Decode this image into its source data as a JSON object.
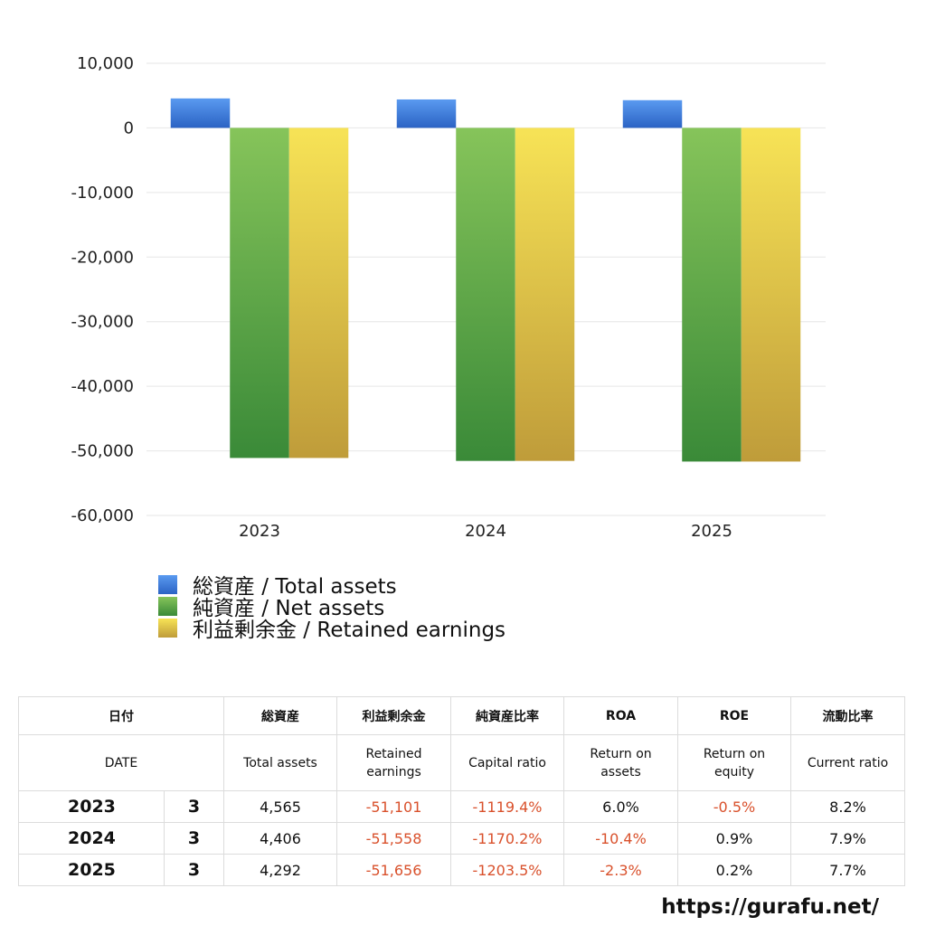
{
  "chart_data": {
    "type": "bar",
    "categories": [
      "2023",
      "2024",
      "2025"
    ],
    "series": [
      {
        "name": "総資産 / Total assets",
        "values": [
          4565,
          4406,
          4292
        ],
        "color": "#3d7bd8"
      },
      {
        "name": "純資産 / Net assets",
        "values": [
          -51101,
          -51558,
          -51656
        ],
        "color": "#4f9f45"
      },
      {
        "name": "利益剰余金 / Retained earnings",
        "values": [
          -51101,
          -51558,
          -51656
        ],
        "color": "#e6c945"
      }
    ],
    "ylim": [
      -60000,
      10000
    ],
    "yticks": [
      10000,
      0,
      -10000,
      -20000,
      -30000,
      -40000,
      -50000,
      -60000
    ],
    "ytick_labels": [
      "10,000",
      "0",
      "-10,000",
      "-20,000",
      "-30,000",
      "-40,000",
      "-50,000",
      "-60,000"
    ],
    "grid": true,
    "legend_position": "bottom-left",
    "title": "",
    "xlabel": "",
    "ylabel": ""
  },
  "legend": [
    {
      "label": "総資産 / Total assets",
      "color_top": "#5a9af0",
      "color_bottom": "#2b63c4"
    },
    {
      "label": "純資産 / Net assets",
      "color_top": "#86c45a",
      "color_bottom": "#3a8a38"
    },
    {
      "label": "利益剰余金 / Retained earnings",
      "color_top": "#f7e356",
      "color_bottom": "#bf9c3a"
    }
  ],
  "table": {
    "headers_jp": [
      "日付",
      "総資産",
      "利益剰余金",
      "純資産比率",
      "ROA",
      "ROE",
      "流動比率"
    ],
    "headers_en": [
      "DATE",
      "Total assets",
      "Retained\nearnings",
      "Capital ratio",
      "Return on\nassets",
      "Return on\nequity",
      "Current ratio"
    ],
    "rows": [
      {
        "year": "2023",
        "month": "3",
        "total_assets": "4,565",
        "retained_earnings": "-51,101",
        "capital_ratio": "-1119.4%",
        "roa": "6.0%",
        "roe": "-0.5%",
        "current_ratio": "8.2%"
      },
      {
        "year": "2024",
        "month": "3",
        "total_assets": "4,406",
        "retained_earnings": "-51,558",
        "capital_ratio": "-1170.2%",
        "roa": "-10.4%",
        "roe": "0.9%",
        "current_ratio": "7.9%"
      },
      {
        "year": "2025",
        "month": "3",
        "total_assets": "4,292",
        "retained_earnings": "-51,656",
        "capital_ratio": "-1203.5%",
        "roa": "-2.3%",
        "roe": "0.2%",
        "current_ratio": "7.7%"
      }
    ]
  },
  "source_url": "https://gurafu.net/"
}
